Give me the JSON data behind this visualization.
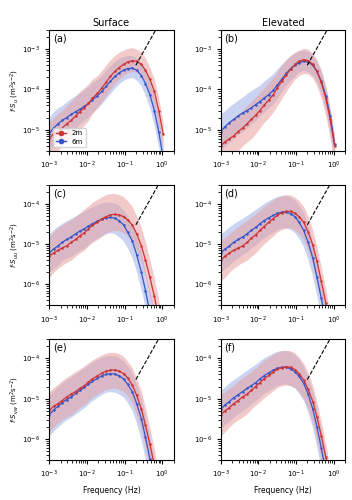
{
  "title_surface": "Surface",
  "title_elevated": "Elevated",
  "legend_labels": [
    "2m",
    "6m"
  ],
  "red_color": "#cc3333",
  "blue_color": "#3355cc",
  "red_fill_color": "#e8a0a0",
  "blue_fill_color": "#a0b0e8",
  "xlim": [
    0.001,
    2.0
  ],
  "ylim_row0": [
    3e-06,
    0.003
  ],
  "ylim_row1": [
    3e-07,
    0.0003
  ],
  "ylim_row2": [
    3e-07,
    0.0003
  ],
  "yticks_row0": [
    1e-05,
    0.0001,
    0.001
  ],
  "yticks_row1": [
    1e-06,
    1e-05,
    0.0001
  ],
  "yticks_row2": [
    1e-06,
    1e-05,
    0.0001
  ],
  "ylabel_row0": "$f{\\cdot}S_u\\ (\\mathrm{m}^2\\mathrm{s}^{-2})$",
  "ylabel_row1": "$f{\\cdot}S_{uu}\\ (\\mathrm{m}^2\\mathrm{s}^{-2})$",
  "ylabel_row2": "$f{\\cdot}S_{vw}\\ (\\mathrm{m}^2\\mathrm{s}^{-2})$",
  "xlabel": "Frequency (Hz)",
  "frequencies": [
    0.001,
    0.0013,
    0.0017,
    0.0022,
    0.0029,
    0.0038,
    0.005,
    0.0065,
    0.0085,
    0.011,
    0.014,
    0.019,
    0.025,
    0.032,
    0.042,
    0.055,
    0.072,
    0.094,
    0.12,
    0.16,
    0.21,
    0.28,
    0.36,
    0.47,
    0.62,
    0.81,
    1.06
  ],
  "surf_a_red_mean": [
    6e-06,
    8e-06,
    9e-06,
    1.1e-05,
    1.4e-05,
    1.7e-05,
    2.2e-05,
    2.8e-05,
    3.5e-05,
    4.5e-05,
    6e-05,
    8e-05,
    0.00011,
    0.00015,
    0.00021,
    0.00028,
    0.00035,
    0.00042,
    0.00048,
    0.00052,
    0.0005,
    0.00042,
    0.0003,
    0.00018,
    9e-05,
    3e-05,
    8e-06
  ],
  "surf_a_red_lo": [
    2e-06,
    3e-06,
    3e-06,
    4e-06,
    5e-06,
    6e-06,
    8e-06,
    1e-05,
    1.3e-05,
    1.7e-05,
    2.5e-05,
    3.5e-05,
    5e-05,
    7e-05,
    0.0001,
    0.00014,
    0.00018,
    0.00022,
    0.00026,
    0.00028,
    0.00027,
    0.00022,
    0.00015,
    8e-05,
    4e-05,
    1.2e-05,
    3e-06
  ],
  "surf_a_red_hi": [
    1.5e-05,
    2e-05,
    2.5e-05,
    3e-05,
    4e-05,
    5e-05,
    7e-05,
    9e-05,
    0.00011,
    0.00014,
    0.00018,
    0.00022,
    0.0003,
    0.0004,
    0.00055,
    0.0007,
    0.00085,
    0.00095,
    0.00105,
    0.0011,
    0.001,
    0.00085,
    0.0006,
    0.00035,
    0.00018,
    6e-05,
    1.5e-05
  ],
  "surf_a_blue_mean": [
    8e-06,
    1.1e-05,
    1.4e-05,
    1.7e-05,
    2e-05,
    2.4e-05,
    2.8e-05,
    3.2e-05,
    3.8e-05,
    4.5e-05,
    5.5e-05,
    7e-05,
    9e-05,
    0.00012,
    0.00016,
    0.00021,
    0.00026,
    0.0003,
    0.00033,
    0.00034,
    0.0003,
    0.00022,
    0.00014,
    7.5e-05,
    3e-05,
    9e-06,
    2e-06
  ],
  "surf_a_blue_lo": [
    3e-06,
    4e-06,
    5e-06,
    6e-06,
    8e-06,
    9e-06,
    1.1e-05,
    1.4e-05,
    1.7e-05,
    2.1e-05,
    2.7e-05,
    3.5e-05,
    4.5e-05,
    6e-05,
    8e-05,
    0.00011,
    0.00014,
    0.00017,
    0.00019,
    0.0002,
    0.00017,
    0.00012,
    7e-05,
    3.5e-05,
    1.2e-05,
    3.5e-06,
    7e-07
  ],
  "surf_a_blue_hi": [
    2e-05,
    2.8e-05,
    3.5e-05,
    4e-05,
    5e-05,
    6e-05,
    7e-05,
    8e-05,
    0.0001,
    0.00012,
    0.00015,
    0.00018,
    0.00023,
    0.0003,
    0.0004,
    0.0005,
    0.0006,
    0.00065,
    0.0007,
    0.0007,
    0.0006,
    0.00045,
    0.00028,
    0.00016,
    6e-05,
    2e-05,
    4e-06
  ],
  "elev_a_red_mean": [
    4e-06,
    5e-06,
    6e-06,
    7e-06,
    9e-06,
    1.1e-05,
    1.4e-05,
    1.8e-05,
    2.3e-05,
    3e-05,
    4e-05,
    5.5e-05,
    7.5e-05,
    0.00011,
    0.00016,
    0.00023,
    0.00032,
    0.00042,
    0.0005,
    0.00055,
    0.00052,
    0.00042,
    0.00028,
    0.00015,
    6e-05,
    1.8e-05,
    4e-06
  ],
  "elev_a_red_lo": [
    1e-06,
    1.5e-06,
    2e-06,
    2.5e-06,
    3e-06,
    4e-06,
    5e-06,
    6e-06,
    8e-06,
    1.1e-05,
    1.5e-05,
    2e-05,
    2.8e-05,
    4e-05,
    6e-05,
    9e-05,
    0.00013,
    0.00018,
    0.00022,
    0.00025,
    0.00024,
    0.00019,
    0.00012,
    6e-05,
    2.2e-05,
    6e-06,
    1.2e-06
  ],
  "elev_a_red_hi": [
    1e-05,
    1.3e-05,
    1.6e-05,
    2e-05,
    2.5e-05,
    3e-05,
    4e-05,
    5e-05,
    6.5e-05,
    8.5e-05,
    0.00011,
    0.00015,
    0.0002,
    0.00028,
    0.0004,
    0.00055,
    0.0007,
    0.00085,
    0.00095,
    0.00105,
    0.001,
    0.0008,
    0.00055,
    0.0003,
    0.00012,
    3.5e-05,
    8e-06
  ],
  "elev_a_blue_mean": [
    9e-06,
    1.2e-05,
    1.5e-05,
    1.8e-05,
    2.2e-05,
    2.6e-05,
    3e-05,
    3.5e-05,
    4.2e-05,
    5e-05,
    6e-05,
    7.5e-05,
    9.5e-05,
    0.00013,
    0.00018,
    0.00025,
    0.00033,
    0.0004,
    0.00046,
    0.0005,
    0.00048,
    0.0004,
    0.00028,
    0.00016,
    7e-05,
    2.2e-05,
    4.5e-06
  ],
  "elev_a_blue_lo": [
    3e-06,
    4e-06,
    5e-06,
    6e-06,
    8e-06,
    9e-06,
    1.1e-05,
    1.4e-05,
    1.7e-05,
    2.2e-05,
    2.8e-05,
    3.5e-05,
    4.5e-05,
    6e-05,
    9e-05,
    0.00013,
    0.00017,
    0.00022,
    0.00027,
    0.0003,
    0.00028,
    0.00022,
    0.00015,
    8e-05,
    3e-05,
    8e-06,
    1.5e-06
  ],
  "elev_a_blue_hi": [
    2.5e-05,
    3e-05,
    3.8e-05,
    4.5e-05,
    5.5e-05,
    6.5e-05,
    8e-05,
    9.5e-05,
    0.00011,
    0.00013,
    0.00016,
    0.0002,
    0.00025,
    0.00033,
    0.00043,
    0.00055,
    0.0007,
    0.0008,
    0.0009,
    0.00095,
    0.00088,
    0.0007,
    0.0005,
    0.00028,
    0.00011,
    3.2e-05,
    6e-06
  ],
  "surf_c_red_mean": [
    5e-06,
    6e-06,
    7e-06,
    8e-06,
    9e-06,
    1.1e-05,
    1.3e-05,
    1.6e-05,
    1.9e-05,
    2.4e-05,
    2.9e-05,
    3.5e-05,
    4.2e-05,
    4.8e-05,
    5.3e-05,
    5.5e-05,
    5.3e-05,
    4.8e-05,
    4e-05,
    3e-05,
    1.8e-05,
    9e-06,
    4e-06,
    1.5e-06,
    5e-07,
    1.5e-07,
    4e-08
  ],
  "surf_c_red_lo": [
    1.5e-06,
    2e-06,
    2.5e-06,
    3e-06,
    3.5e-06,
    4e-06,
    5e-06,
    6e-06,
    7e-06,
    9e-06,
    1.1e-05,
    1.3e-05,
    1.6e-05,
    1.9e-05,
    2.1e-05,
    2.2e-05,
    2.1e-05,
    1.9e-05,
    1.6e-05,
    1.2e-05,
    7e-06,
    3.5e-06,
    1.5e-06,
    5e-07,
    1.5e-07,
    4e-08,
    1e-08
  ],
  "surf_c_red_hi": [
    1.5e-05,
    2e-05,
    2.5e-05,
    3e-05,
    3.5e-05,
    4e-05,
    5e-05,
    6e-05,
    7.5e-05,
    9e-05,
    0.00011,
    0.00013,
    0.00015,
    0.00017,
    0.00018,
    0.00018,
    0.00017,
    0.00015,
    0.00012,
    8.5e-05,
    5e-05,
    2.5e-05,
    1.1e-05,
    4e-06,
    1.4e-06,
    4e-07,
    1e-07
  ],
  "surf_c_blue_mean": [
    6e-06,
    7.5e-06,
    9e-06,
    1.1e-05,
    1.3e-05,
    1.5e-05,
    1.8e-05,
    2.1e-05,
    2.4e-05,
    2.8e-05,
    3.2e-05,
    3.7e-05,
    4.2e-05,
    4.5e-05,
    4.6e-05,
    4.4e-05,
    3.8e-05,
    3e-05,
    2e-05,
    1.2e-05,
    5.5e-06,
    2e-06,
    7e-07,
    2e-07,
    6e-08,
    1.5e-08,
    4e-09
  ],
  "surf_c_blue_lo": [
    2e-06,
    2.5e-06,
    3e-06,
    4e-06,
    4.5e-06,
    5e-06,
    6e-06,
    7e-06,
    8e-06,
    1e-05,
    1.2e-05,
    1.4e-05,
    1.6e-05,
    1.8e-05,
    1.9e-05,
    1.8e-05,
    1.5e-05,
    1.2e-05,
    8e-06,
    4.5e-06,
    2e-06,
    7e-07,
    2.5e-07,
    7e-08,
    2e-08,
    5e-09,
    1.5e-09
  ],
  "surf_c_blue_hi": [
    1.8e-05,
    2.3e-05,
    2.8e-05,
    3.3e-05,
    3.8e-05,
    4.4e-05,
    5e-05,
    5.8e-05,
    6.5e-05,
    7.5e-05,
    8.5e-05,
    9.5e-05,
    0.000105,
    0.00011,
    0.00011,
    0.000105,
    9e-05,
    7e-05,
    5e-05,
    3e-05,
    1.5e-05,
    6e-06,
    2e-06,
    7e-07,
    2e-07,
    5e-08,
    1.2e-08
  ],
  "elev_c_red_mean": [
    4e-06,
    5e-06,
    6e-06,
    7e-06,
    8e-06,
    9e-06,
    1.1e-05,
    1.4e-05,
    1.7e-05,
    2.2e-05,
    2.7e-05,
    3.5e-05,
    4.3e-05,
    5.2e-05,
    6e-05,
    6.5e-05,
    6.5e-05,
    5.8e-05,
    4.8e-05,
    3.5e-05,
    2e-05,
    9.5e-06,
    3.8e-06,
    1.2e-06,
    3.5e-07,
    9e-08,
    2e-08
  ],
  "elev_c_red_lo": [
    1.2e-06,
    1.5e-06,
    2e-06,
    2.5e-06,
    3e-06,
    3.5e-06,
    4e-06,
    5e-06,
    6e-06,
    8e-06,
    1e-05,
    1.3e-05,
    1.6e-05,
    2e-05,
    2.3e-05,
    2.5e-05,
    2.5e-05,
    2.2e-05,
    1.8e-05,
    1.3e-05,
    7e-06,
    3e-06,
    1.1e-06,
    3.5e-07,
    9e-08,
    2e-08,
    4e-09
  ],
  "elev_c_red_hi": [
    1.2e-05,
    1.5e-05,
    1.8e-05,
    2.2e-05,
    2.7e-05,
    3.2e-05,
    3.8e-05,
    4.7e-05,
    5.7e-05,
    7e-05,
    8.5e-05,
    0.000105,
    0.000125,
    0.000145,
    0.00016,
    0.00017,
    0.000165,
    0.000145,
    0.00012,
    8.5e-05,
    4.8e-05,
    2.2e-05,
    8.5e-06,
    2.7e-06,
    7.5e-07,
    1.8e-07,
    4e-08
  ],
  "elev_c_blue_mean": [
    6e-06,
    7.5e-06,
    9e-06,
    1.1e-05,
    1.3e-05,
    1.5e-05,
    1.8e-05,
    2.2e-05,
    2.6e-05,
    3.2e-05,
    3.8e-05,
    4.5e-05,
    5.2e-05,
    5.8e-05,
    6.2e-05,
    6.2e-05,
    5.7e-05,
    4.8e-05,
    3.5e-05,
    2.2e-05,
    1.1e-05,
    4.5e-06,
    1.5e-06,
    4.5e-07,
    1.2e-07,
    2.8e-08,
    6e-09
  ],
  "elev_c_blue_lo": [
    2e-06,
    2.5e-06,
    3e-06,
    3.8e-06,
    4.5e-06,
    5.5e-06,
    6.5e-06,
    8e-06,
    9.5e-06,
    1.2e-05,
    1.4e-05,
    1.7e-05,
    2e-05,
    2.3e-05,
    2.5e-05,
    2.5e-05,
    2.3e-05,
    1.9e-05,
    1.4e-05,
    8.5e-06,
    4e-06,
    1.5e-06,
    5e-07,
    1.5e-07,
    3.5e-08,
    8e-09,
    1.5e-09
  ],
  "elev_c_blue_hi": [
    1.8e-05,
    2.2e-05,
    2.7e-05,
    3.2e-05,
    3.8e-05,
    4.4e-05,
    5.2e-05,
    6.2e-05,
    7.3e-05,
    8.7e-05,
    0.000102,
    0.00012,
    0.000138,
    0.000152,
    0.00016,
    0.00016,
    0.000145,
    0.000122,
    9e-05,
    5.8e-05,
    2.8e-05,
    1.1e-05,
    3.8e-06,
    1.1e-06,
    2.8e-07,
    6.5e-08,
    1.3e-08
  ],
  "surf_e_red_mean": [
    5e-06,
    6.5e-06,
    7.5e-06,
    9e-06,
    1.1e-05,
    1.3e-05,
    1.5e-05,
    1.8e-05,
    2.1e-05,
    2.6e-05,
    3.1e-05,
    3.7e-05,
    4.3e-05,
    4.8e-05,
    5.1e-05,
    5.2e-05,
    4.8e-05,
    4.2e-05,
    3.3e-05,
    2.2e-05,
    1.2e-05,
    5.5e-06,
    2.2e-06,
    7.5e-07,
    2.2e-07,
    5.5e-08,
    1.2e-08
  ],
  "surf_e_red_lo": [
    1.5e-06,
    2e-06,
    2.5e-06,
    3e-06,
    3.5e-06,
    4e-06,
    5e-06,
    6e-06,
    7e-06,
    9e-06,
    1.1e-05,
    1.3e-05,
    1.5e-05,
    1.7e-05,
    1.8e-05,
    1.85e-05,
    1.7e-05,
    1.5e-05,
    1.2e-05,
    8e-06,
    4e-06,
    1.7e-06,
    6e-07,
    2e-07,
    5e-08,
    1.2e-08,
    2.5e-09
  ],
  "surf_e_red_hi": [
    1.5e-05,
    1.9e-05,
    2.3e-05,
    2.8e-05,
    3.4e-05,
    4e-05,
    4.7e-05,
    5.5e-05,
    6.5e-05,
    7.8e-05,
    9.2e-05,
    0.000108,
    0.000123,
    0.000135,
    0.000142,
    0.000142,
    0.00013,
    0.000112,
    8.5e-05,
    5.8e-05,
    3.2e-05,
    1.5e-05,
    5.8e-06,
    1.9e-06,
    5.5e-07,
    1.4e-07,
    3e-08
  ],
  "surf_e_blue_mean": [
    4e-06,
    5.2e-06,
    6.5e-06,
    8e-06,
    9.5e-06,
    1.1e-05,
    1.35e-05,
    1.6e-05,
    1.9e-05,
    2.3e-05,
    2.7e-05,
    3.2e-05,
    3.7e-05,
    4e-05,
    4.2e-05,
    4.1e-05,
    3.7e-05,
    3.1e-05,
    2.3e-05,
    1.5e-05,
    7.5e-06,
    3.2e-06,
    1.1e-06,
    3.2e-07,
    8.5e-08,
    2e-08,
    4e-09
  ],
  "surf_e_blue_lo": [
    1.2e-06,
    1.6e-06,
    2e-06,
    2.5e-06,
    3e-06,
    3.5e-06,
    4.2e-06,
    5e-06,
    6e-06,
    7.5e-06,
    9e-06,
    1.1e-05,
    1.3e-05,
    1.45e-05,
    1.5e-05,
    1.45e-05,
    1.3e-05,
    1.1e-05,
    8e-06,
    5e-06,
    2.4e-06,
    9e-07,
    3e-07,
    8e-08,
    2e-08,
    4.5e-09,
    9e-10
  ],
  "surf_e_blue_hi": [
    1.3e-05,
    1.6e-05,
    2e-05,
    2.5e-05,
    3e-05,
    3.5e-05,
    4.2e-05,
    5e-05,
    5.9e-05,
    7e-05,
    8.2e-05,
    9.5e-05,
    0.000107,
    0.000115,
    0.00012,
    0.000117,
    0.000105,
    8.7e-05,
    6.5e-05,
    4.3e-05,
    2.2e-05,
    9.5e-06,
    3.5e-06,
    1.1e-06,
    2.9e-07,
    7e-08,
    1.4e-08
  ],
  "elev_e_red_mean": [
    4e-06,
    5e-06,
    6e-06,
    7.5e-06,
    9e-06,
    1.1e-05,
    1.3e-05,
    1.6e-05,
    2e-05,
    2.5e-05,
    3.1e-05,
    3.8e-05,
    4.6e-05,
    5.4e-05,
    5.9e-05,
    6.2e-05,
    6e-05,
    5.3e-05,
    4.2e-05,
    2.9e-05,
    1.7e-05,
    8.5e-06,
    3.5e-06,
    1.2e-06,
    3.5e-07,
    8.5e-08,
    1.8e-08
  ],
  "elev_e_red_lo": [
    1.2e-06,
    1.5e-06,
    2e-06,
    2.5e-06,
    3e-06,
    3.5e-06,
    4.2e-06,
    5.5e-06,
    7e-06,
    8.5e-06,
    1.05e-05,
    1.3e-05,
    1.6e-05,
    1.9e-05,
    2.1e-05,
    2.2e-05,
    2.1e-05,
    1.9e-05,
    1.5e-05,
    1e-05,
    5.5e-06,
    2.5e-06,
    9.5e-07,
    3e-07,
    8e-08,
    1.8e-08,
    3.5e-09
  ],
  "elev_e_red_hi": [
    1.2e-05,
    1.5e-05,
    1.8e-05,
    2.2e-05,
    2.8e-05,
    3.3e-05,
    3.9e-05,
    4.8e-05,
    5.8e-05,
    7.2e-05,
    8.8e-05,
    0.000106,
    0.000125,
    0.000143,
    0.000155,
    0.00016,
    0.000155,
    0.000137,
    0.000108,
    7.5e-05,
    4.4e-05,
    2.1e-05,
    8.2e-06,
    2.7e-06,
    7.5e-07,
    1.8e-07,
    3.8e-08
  ],
  "elev_e_blue_mean": [
    5.5e-06,
    7e-06,
    8.5e-06,
    1.05e-05,
    1.25e-05,
    1.5e-05,
    1.8e-05,
    2.1e-05,
    2.5e-05,
    3.1e-05,
    3.7e-05,
    4.4e-05,
    5.1e-05,
    5.7e-05,
    6e-05,
    6e-05,
    5.5e-05,
    4.7e-05,
    3.6e-05,
    2.4e-05,
    1.3e-05,
    5.5e-06,
    2e-06,
    6e-07,
    1.5e-07,
    3.5e-08,
    7e-09
  ],
  "elev_e_blue_lo": [
    1.8e-06,
    2.3e-06,
    2.8e-06,
    3.5e-06,
    4.2e-06,
    5e-06,
    6e-06,
    7.5e-06,
    9e-06,
    1.1e-05,
    1.35e-05,
    1.6e-05,
    1.9e-05,
    2.15e-05,
    2.3e-05,
    2.3e-05,
    2.1e-05,
    1.8e-05,
    1.35e-05,
    8.8e-06,
    4.5e-06,
    1.8e-06,
    6e-07,
    1.7e-07,
    4e-08,
    8.5e-09,
    1.5e-09
  ],
  "elev_e_blue_hi": [
    1.6e-05,
    2e-05,
    2.5e-05,
    3e-05,
    3.6e-05,
    4.3e-05,
    5.2e-05,
    6.1e-05,
    7.2e-05,
    8.8e-05,
    0.000103,
    0.00012,
    0.000137,
    0.000151,
    0.000158,
    0.000158,
    0.000145,
    0.000123,
    9.4e-05,
    6.2e-05,
    3.4e-05,
    1.5e-05,
    5.5e-06,
    1.7e-06,
    4.4e-07,
    1.04e-07,
    2.1e-08
  ]
}
